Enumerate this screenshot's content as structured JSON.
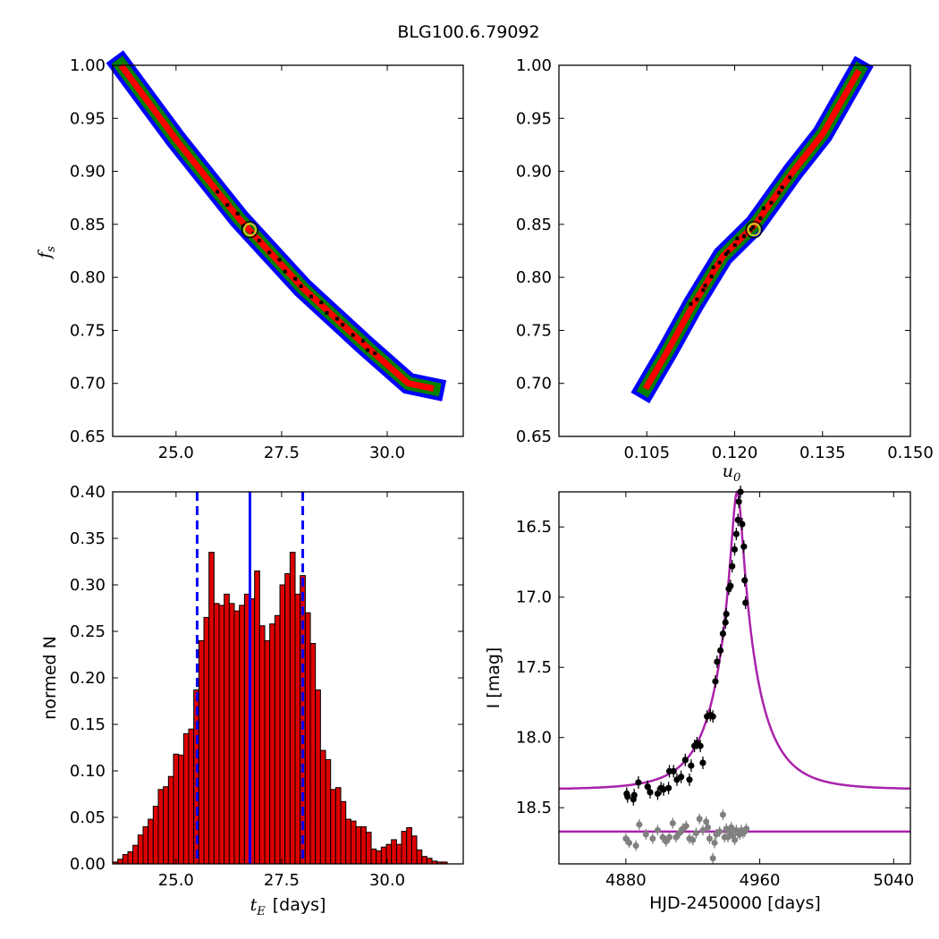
{
  "figure_title": "BLG100.6.79092",
  "colors": {
    "contour_3sigma": "#0000ff",
    "contour_2sigma": "#008000",
    "contour_1sigma": "#ff0000",
    "mcmc_points": "#000000",
    "best_fit_marker": "#c8c820",
    "histogram_bar": "#dd0000",
    "median_line": "#0000ff",
    "model_curve": "#aa22aa",
    "data_points": "#000000",
    "residual_points": "#808080"
  },
  "chart_data": [
    {
      "panel": "top-left",
      "type": "heatmap",
      "xlabel": "",
      "ylabel": "f_s",
      "ylabel_sub": "s",
      "xlim": [
        23.5,
        31.8
      ],
      "ylim": [
        0.65,
        1.0
      ],
      "xticks": [
        "25.0",
        "27.5",
        "30.0"
      ],
      "yticks": [
        "0.65",
        "0.70",
        "0.75",
        "0.80",
        "0.85",
        "0.90",
        "0.95",
        "1.00"
      ],
      "contour_spine": [
        [
          23.7,
          1.0
        ],
        [
          25.0,
          0.93
        ],
        [
          26.5,
          0.855
        ],
        [
          28.0,
          0.79
        ],
        [
          29.5,
          0.735
        ],
        [
          30.5,
          0.7
        ],
        [
          31.1,
          0.695
        ]
      ],
      "best_fit": {
        "x": 26.75,
        "y": 0.845
      }
    },
    {
      "panel": "top-right",
      "type": "heatmap",
      "xlabel": "u_0",
      "xlabel_sub": "0",
      "ylabel": "",
      "xlim": [
        0.09,
        0.15
      ],
      "ylim": [
        0.65,
        1.0
      ],
      "xticks": [
        "0.105",
        "0.120",
        "0.135",
        "0.150"
      ],
      "yticks": [
        "0.65",
        "0.70",
        "0.75",
        "0.80",
        "0.85",
        "0.90",
        "0.95",
        "1.00"
      ],
      "contour_spine": [
        [
          0.1048,
          0.695
        ],
        [
          0.1085,
          0.73
        ],
        [
          0.113,
          0.775
        ],
        [
          0.118,
          0.82
        ],
        [
          0.1235,
          0.85
        ],
        [
          0.13,
          0.9
        ],
        [
          0.135,
          0.935
        ],
        [
          0.1412,
          0.995
        ]
      ],
      "best_fit": {
        "x": 0.1233,
        "y": 0.845
      }
    },
    {
      "panel": "bottom-left",
      "type": "bar",
      "xlabel": "t_E  [days]",
      "xlabel_math": "t",
      "xlabel_sub": "E",
      "xlabel_text": "[days]",
      "ylabel": "normed N",
      "xlim": [
        23.5,
        31.8
      ],
      "ylim": [
        0.0,
        0.4
      ],
      "xticks": [
        "25.0",
        "27.5",
        "30.0"
      ],
      "yticks": [
        "0.00",
        "0.05",
        "0.10",
        "0.15",
        "0.20",
        "0.25",
        "0.30",
        "0.35",
        "0.40"
      ],
      "bin_start": 23.5,
      "bin_width": 0.12,
      "values": [
        0.002,
        0.005,
        0.01,
        0.013,
        0.02,
        0.031,
        0.04,
        0.048,
        0.062,
        0.08,
        0.083,
        0.094,
        0.118,
        0.117,
        0.14,
        0.145,
        0.187,
        0.24,
        0.265,
        0.335,
        0.28,
        0.278,
        0.29,
        0.28,
        0.272,
        0.278,
        0.29,
        0.285,
        0.315,
        0.256,
        0.24,
        0.258,
        0.267,
        0.3,
        0.312,
        0.335,
        0.29,
        0.31,
        0.27,
        0.237,
        0.187,
        0.122,
        0.112,
        0.08,
        0.082,
        0.067,
        0.048,
        0.046,
        0.04,
        0.04,
        0.034,
        0.016,
        0.014,
        0.018,
        0.021,
        0.026,
        0.021,
        0.035,
        0.039,
        0.03,
        0.015,
        0.008,
        0.006,
        0.003,
        0.002,
        0.002
      ],
      "median": 26.75,
      "lower_bound": 25.5,
      "upper_bound": 28.0
    },
    {
      "panel": "bottom-right",
      "type": "scatter",
      "xlabel": "HJD-2450000 [days]",
      "ylabel": "I [mag]",
      "xlim": [
        4840,
        5050
      ],
      "ylim": [
        18.9,
        16.25
      ],
      "xticks": [
        "4880",
        "4960",
        "5040"
      ],
      "yticks": [
        "16.5",
        "17.0",
        "17.5",
        "18.0",
        "18.5"
      ],
      "model": {
        "t0": 4946.5,
        "tE": 26.75,
        "u0": 0.1233,
        "baseline": 18.37,
        "fs": 0.845
      },
      "residual_baseline": 18.67,
      "data_x": [
        4880.5,
        4881.0,
        4884.5,
        4885.0,
        4887.5,
        4893.0,
        4894.5,
        4899.0,
        4901.0,
        4902.5,
        4905.5,
        4906.0,
        4908.5,
        4910.5,
        4913.0,
        4915.5,
        4918.0,
        4919.0,
        4921.0,
        4922.5,
        4924.5,
        4926.0,
        4928.5,
        4930.5,
        4932.0,
        4933.5,
        4934.5,
        4936.5,
        4938.0,
        4939.5,
        4940.0,
        4941.5,
        4942.5,
        4943.5,
        4945.0,
        4946.0,
        4947.0,
        4947.5,
        4948.5,
        4949.5,
        4950.5,
        4951.0,
        4951.5
      ],
      "data_y": [
        18.4,
        18.42,
        18.44,
        18.41,
        18.32,
        18.35,
        18.39,
        18.4,
        18.36,
        18.37,
        18.36,
        18.24,
        18.24,
        18.3,
        18.28,
        18.16,
        18.3,
        18.2,
        18.06,
        18.04,
        18.06,
        18.18,
        17.85,
        17.84,
        17.85,
        17.6,
        17.46,
        17.38,
        17.26,
        17.18,
        17.12,
        16.94,
        16.92,
        16.78,
        16.66,
        16.55,
        16.45,
        16.32,
        16.25,
        16.48,
        16.64,
        16.88,
        17.04
      ],
      "residual_x": [
        4880,
        4882,
        4886,
        4888,
        4892,
        4896,
        4899,
        4902,
        4904,
        4906,
        4908,
        4910,
        4912,
        4914,
        4916,
        4918,
        4920,
        4922,
        4924,
        4926,
        4928,
        4929,
        4930,
        4932,
        4933,
        4934,
        4936,
        4938,
        4939,
        4940,
        4941,
        4942,
        4943,
        4944,
        4945,
        4946,
        4947,
        4948,
        4949,
        4950,
        4951,
        4952
      ],
      "residual_y": [
        18.72,
        18.75,
        18.77,
        18.62,
        18.69,
        18.72,
        18.66,
        18.71,
        18.74,
        18.71,
        18.61,
        18.71,
        18.68,
        18.65,
        18.63,
        18.72,
        18.73,
        18.68,
        18.58,
        18.66,
        18.6,
        18.64,
        18.72,
        18.86,
        18.75,
        18.69,
        18.67,
        18.55,
        18.71,
        18.65,
        18.71,
        18.67,
        18.64,
        18.7,
        18.73,
        18.66,
        18.68,
        18.69,
        18.66,
        18.68,
        18.67,
        18.65
      ]
    }
  ]
}
